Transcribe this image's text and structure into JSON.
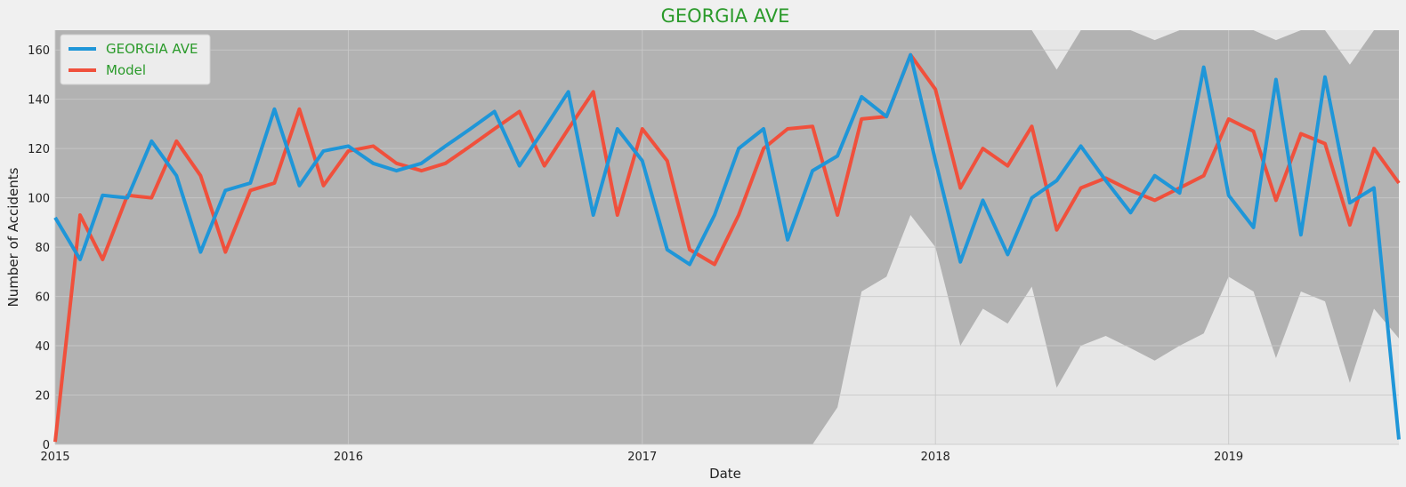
{
  "chart_data": {
    "type": "line",
    "title": "GEORGIA AVE",
    "xlabel": "Date",
    "ylabel": "Number of Accidents",
    "xlim": [
      "2015-01-01",
      "2019-08-01"
    ],
    "ylim": [
      0,
      168
    ],
    "yticks": [
      0,
      20,
      40,
      60,
      80,
      100,
      120,
      140,
      160
    ],
    "xticks": [
      {
        "date": "2015-01-01",
        "label": "2015"
      },
      {
        "date": "2016-01-01",
        "label": "2016"
      },
      {
        "date": "2017-01-01",
        "label": "2017"
      },
      {
        "date": "2018-01-01",
        "label": "2018"
      },
      {
        "date": "2019-01-01",
        "label": "2019"
      }
    ],
    "grid": true,
    "legend_position": "top-left",
    "dates": [
      "2015-01-01",
      "2015-02-01",
      "2015-03-01",
      "2015-04-01",
      "2015-05-01",
      "2015-06-01",
      "2015-07-01",
      "2015-08-01",
      "2015-09-01",
      "2015-10-01",
      "2015-11-01",
      "2015-12-01",
      "2016-01-01",
      "2016-02-01",
      "2016-03-01",
      "2016-04-01",
      "2016-05-01",
      "2016-06-01",
      "2016-07-01",
      "2016-08-01",
      "2016-09-01",
      "2016-10-01",
      "2016-11-01",
      "2016-12-01",
      "2017-01-01",
      "2017-02-01",
      "2017-03-01",
      "2017-04-01",
      "2017-05-01",
      "2017-06-01",
      "2017-07-01",
      "2017-08-01",
      "2017-09-01",
      "2017-10-01",
      "2017-11-01",
      "2017-12-01",
      "2018-01-01",
      "2018-02-01",
      "2018-03-01",
      "2018-04-01",
      "2018-05-01",
      "2018-06-01",
      "2018-07-01",
      "2018-08-01",
      "2018-09-01",
      "2018-10-01",
      "2018-11-01",
      "2018-12-01",
      "2019-01-01",
      "2019-02-01",
      "2019-03-01",
      "2019-04-01",
      "2019-05-01",
      "2019-06-01",
      "2019-07-01",
      "2019-08-01"
    ],
    "series": [
      {
        "name": "GEORGIA AVE",
        "color": "#1f96d8",
        "values": [
          92,
          75,
          101,
          100,
          123,
          109,
          78,
          103,
          106,
          136,
          105,
          119,
          121,
          114,
          111,
          114,
          121,
          128,
          135,
          113,
          128,
          143,
          93,
          128,
          115,
          79,
          73,
          93,
          120,
          128,
          83,
          111,
          117,
          141,
          133,
          158,
          115,
          74,
          99,
          77,
          100,
          107,
          121,
          107,
          94,
          109,
          102,
          153,
          101,
          88,
          148,
          85,
          149,
          98,
          104,
          2
        ]
      },
      {
        "name": "Model",
        "color": "#f0503c",
        "values": [
          1,
          93,
          75,
          101,
          100,
          123,
          109,
          78,
          103,
          106,
          136,
          105,
          119,
          121,
          114,
          111,
          114,
          121,
          128,
          135,
          113,
          128,
          143,
          93,
          128,
          115,
          79,
          73,
          93,
          120,
          128,
          129,
          93,
          132,
          133,
          158,
          144,
          104,
          120,
          113,
          129,
          87,
          104,
          108,
          103,
          99,
          104,
          109,
          132,
          127,
          99,
          126,
          122,
          89,
          120,
          106
        ]
      }
    ],
    "confidence_band": {
      "color": "#b2b2b2",
      "lower": [
        0,
        0,
        0,
        0,
        0,
        0,
        0,
        0,
        0,
        0,
        0,
        0,
        0,
        0,
        0,
        0,
        0,
        0,
        0,
        0,
        0,
        0,
        0,
        0,
        0,
        0,
        0,
        0,
        0,
        0,
        0,
        0,
        15,
        62,
        68,
        93,
        80,
        40,
        55,
        49,
        64,
        23,
        40,
        44,
        39,
        34,
        40,
        45,
        68,
        62,
        35,
        62,
        58,
        25,
        55,
        43
      ],
      "upper": [
        168,
        168,
        168,
        168,
        168,
        168,
        168,
        168,
        168,
        168,
        168,
        168,
        168,
        168,
        168,
        168,
        168,
        168,
        168,
        168,
        168,
        168,
        168,
        168,
        168,
        168,
        168,
        168,
        168,
        168,
        168,
        168,
        168,
        168,
        168,
        168,
        168,
        168,
        168,
        168,
        168,
        152,
        168,
        168,
        168,
        164,
        168,
        168,
        168,
        168,
        164,
        168,
        168,
        154,
        168,
        168
      ]
    }
  }
}
